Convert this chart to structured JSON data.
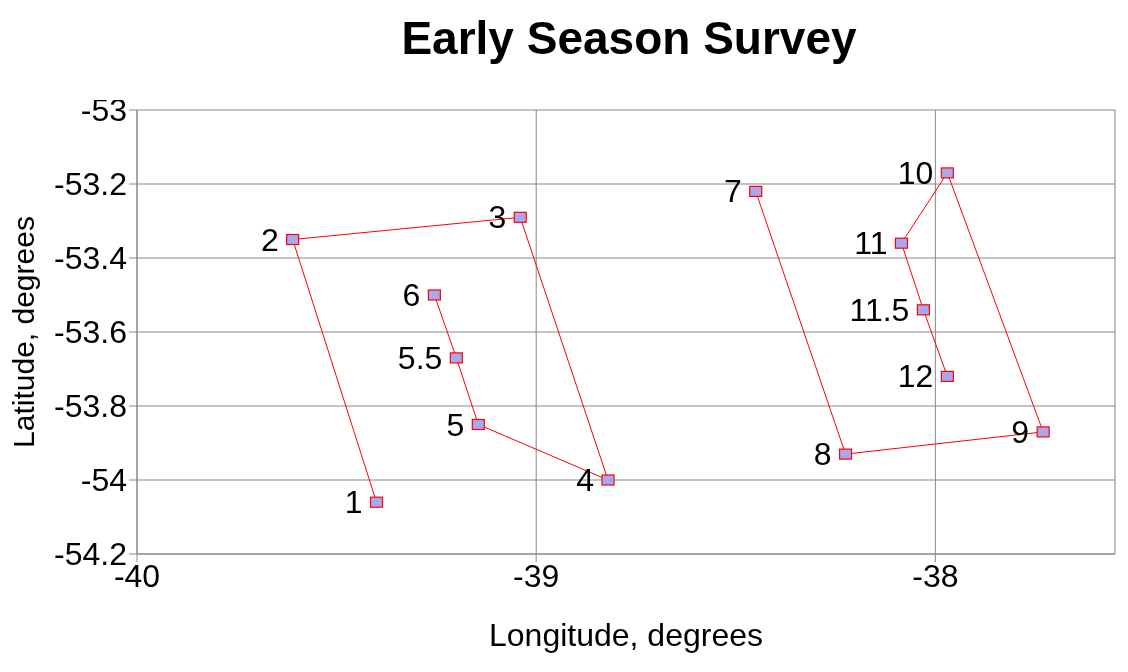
{
  "chart_data": {
    "type": "line",
    "title": "Early Season Survey",
    "xlabel": "Longitude, degrees",
    "ylabel": "Latitude, degrees",
    "xlim": [
      -40,
      -37.55
    ],
    "xticks": [
      -40,
      -39,
      -38
    ],
    "ylim": [
      -54.2,
      -53
    ],
    "yticks": [
      -54.2,
      -54,
      -53.8,
      -53.6,
      -53.4,
      -53.2,
      -53
    ],
    "grid": true,
    "marker": "square",
    "line_style": "solid",
    "series": [
      {
        "color": "#ff0000",
        "x": [
          -39.4,
          -39.61,
          -39.04,
          -38.82,
          -39.145,
          -39.2,
          -39.255
        ],
        "values": [
          -54.06,
          -53.35,
          -53.29,
          -54.0,
          -53.85,
          -53.67,
          -53.5
        ]
      },
      {
        "color": "#ff0000",
        "x": [
          -38.45,
          -38.225,
          -37.73,
          -37.97,
          -38.085,
          -38.03,
          -37.97
        ],
        "values": [
          -53.22,
          -53.93,
          -53.87,
          -53.17,
          -53.36,
          -53.54,
          -53.72
        ]
      }
    ],
    "annotations": [
      {
        "text": "1",
        "x": -39.4,
        "y": -54.06
      },
      {
        "text": "2",
        "x": -39.61,
        "y": -53.35
      },
      {
        "text": "3",
        "x": -39.04,
        "y": -53.29
      },
      {
        "text": "4",
        "x": -38.82,
        "y": -54.0
      },
      {
        "text": "5",
        "x": -39.145,
        "y": -53.85
      },
      {
        "text": "5.5",
        "x": -39.2,
        "y": -53.67
      },
      {
        "text": "6",
        "x": -39.255,
        "y": -53.5
      },
      {
        "text": "7",
        "x": -38.45,
        "y": -53.22
      },
      {
        "text": "8",
        "x": -38.225,
        "y": -53.93
      },
      {
        "text": "9",
        "x": -37.73,
        "y": -53.87
      },
      {
        "text": "10",
        "x": -37.97,
        "y": -53.17
      },
      {
        "text": "11",
        "x": -38.085,
        "y": -53.36
      },
      {
        "text": "11.5",
        "x": -38.03,
        "y": -53.54
      },
      {
        "text": "12",
        "x": -37.97,
        "y": -53.72
      }
    ]
  }
}
